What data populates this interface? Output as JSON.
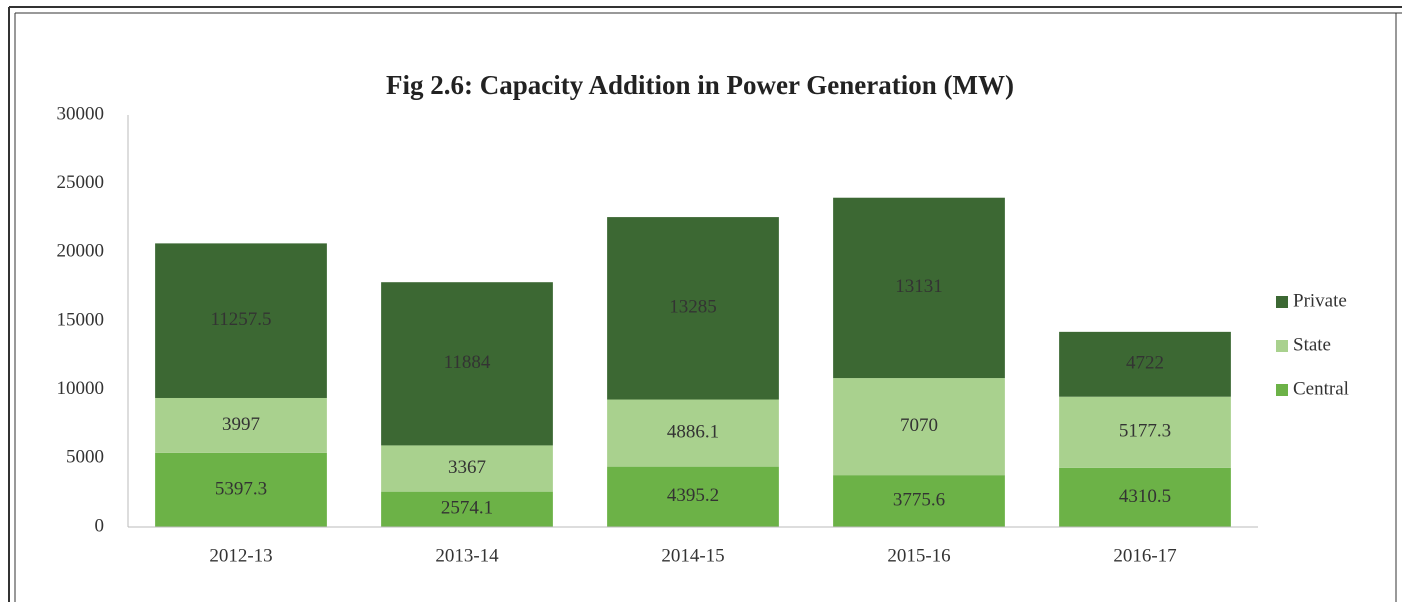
{
  "chart_data": {
    "type": "stacked_bar",
    "title": "Fig 2.6: Capacity Addition in Power Generation (MW)",
    "categories": [
      "2012-13",
      "2013-14",
      "2014-15",
      "2015-16",
      "2016-17"
    ],
    "series": [
      {
        "name": "Central",
        "color": "#6cb247",
        "values": [
          5397.3,
          2574.1,
          4395.2,
          3775.6,
          4310.5
        ]
      },
      {
        "name": "State",
        "color": "#a9d18e",
        "values": [
          3997,
          3367,
          4886.1,
          7070,
          5177.3
        ]
      },
      {
        "name": "Private",
        "color": "#3c6833",
        "values": [
          11257.5,
          11884,
          13285,
          13131,
          4722
        ]
      }
    ],
    "ylim": [
      0,
      30000
    ],
    "yticks": [
      0,
      5000,
      10000,
      15000,
      20000,
      25000,
      30000
    ],
    "grid": false,
    "legend": "right"
  }
}
